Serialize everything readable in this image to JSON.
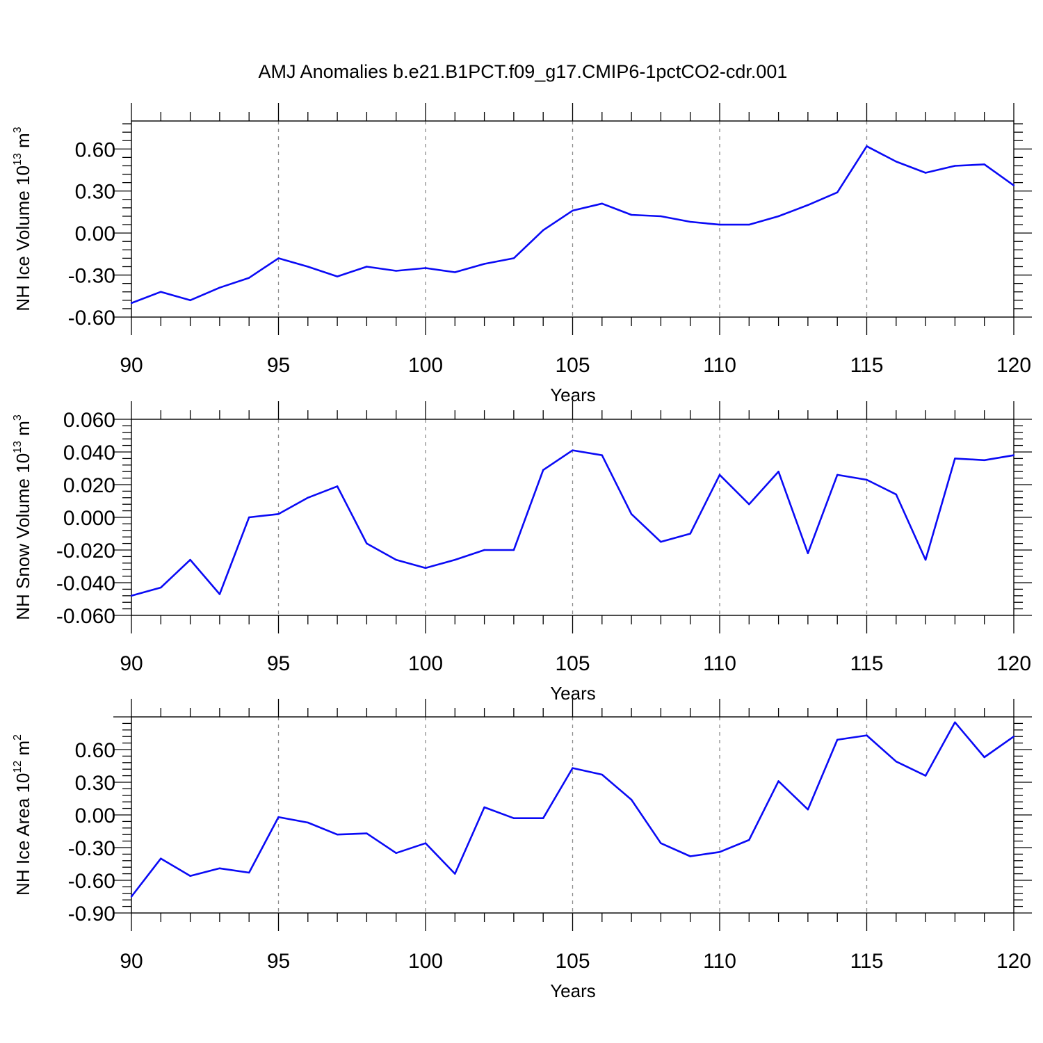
{
  "title": "AMJ Anomalies b.e21.B1PCT.f09_g17.CMIP6-1pctCO2-cdr.001",
  "colors": {
    "line": "#0a0af5",
    "axis": "#000000",
    "grid": "#8c8c8c"
  },
  "chart_data": [
    {
      "type": "line",
      "xlabel": "Years",
      "ylabel": "NH Ice Volume 10",
      "ylabel_sup": "13",
      "ylabel_unit": " m",
      "ylabel_unit_sup": "3",
      "xlim": [
        90,
        120
      ],
      "ylim": [
        -0.6,
        0.8
      ],
      "yticks": [
        -0.6,
        -0.3,
        0.0,
        0.3,
        0.6
      ],
      "ytick_labels": [
        "-0.60",
        "-0.30",
        "0.00",
        "0.30",
        "0.60"
      ],
      "xticks": [
        90,
        95,
        100,
        105,
        110,
        115,
        120
      ],
      "xtick_labels": [
        "90",
        "95",
        "100",
        "105",
        "110",
        "115",
        "120"
      ],
      "grid": "vertical dashed at major x ticks",
      "x": [
        90,
        91,
        92,
        93,
        94,
        95,
        96,
        97,
        98,
        99,
        100,
        101,
        102,
        103,
        104,
        105,
        106,
        107,
        108,
        109,
        110,
        111,
        112,
        113,
        114,
        115,
        116,
        117,
        118,
        119,
        120
      ],
      "y": [
        -0.5,
        -0.42,
        -0.48,
        -0.39,
        -0.32,
        -0.18,
        -0.24,
        -0.31,
        -0.24,
        -0.27,
        -0.25,
        -0.28,
        -0.22,
        -0.18,
        0.02,
        0.16,
        0.21,
        0.13,
        0.12,
        0.08,
        0.06,
        0.06,
        0.12,
        0.2,
        0.29,
        0.62,
        0.51,
        0.43,
        0.48,
        0.49,
        0.34
      ]
    },
    {
      "type": "line",
      "xlabel": "Years",
      "ylabel": "NH Snow Volume 10",
      "ylabel_sup": "13",
      "ylabel_unit": " m",
      "ylabel_unit_sup": "3",
      "xlim": [
        90,
        120
      ],
      "ylim": [
        -0.06,
        0.06
      ],
      "yticks": [
        -0.06,
        -0.04,
        -0.02,
        0.0,
        0.02,
        0.04,
        0.06
      ],
      "ytick_labels": [
        "-0.060",
        "-0.040",
        "-0.020",
        "0.000",
        "0.020",
        "0.040",
        "0.060"
      ],
      "xticks": [
        90,
        95,
        100,
        105,
        110,
        115,
        120
      ],
      "xtick_labels": [
        "90",
        "95",
        "100",
        "105",
        "110",
        "115",
        "120"
      ],
      "grid": "vertical dashed at major x ticks",
      "x": [
        90,
        91,
        92,
        93,
        94,
        95,
        96,
        97,
        98,
        99,
        100,
        101,
        102,
        103,
        104,
        105,
        106,
        107,
        108,
        109,
        110,
        111,
        112,
        113,
        114,
        115,
        116,
        117,
        118,
        119,
        120
      ],
      "y": [
        -0.048,
        -0.043,
        -0.026,
        -0.047,
        0.0,
        0.002,
        0.012,
        0.019,
        -0.016,
        -0.026,
        -0.031,
        -0.026,
        -0.02,
        -0.02,
        0.029,
        0.041,
        0.038,
        0.002,
        -0.015,
        -0.01,
        0.026,
        0.008,
        0.028,
        -0.022,
        0.026,
        0.023,
        0.014,
        -0.026,
        0.036,
        0.035,
        0.038
      ]
    },
    {
      "type": "line",
      "xlabel": "Years",
      "ylabel": "NH Ice Area 10",
      "ylabel_sup": "12",
      "ylabel_unit": " m",
      "ylabel_unit_sup": "2",
      "xlim": [
        90,
        120
      ],
      "ylim": [
        -0.9,
        0.9
      ],
      "yticks": [
        -0.9,
        -0.6,
        -0.3,
        0.0,
        0.3,
        0.6
      ],
      "ytick_labels": [
        "-0.90",
        "-0.60",
        "-0.30",
        "0.00",
        "0.30",
        "0.60"
      ],
      "xticks": [
        90,
        95,
        100,
        105,
        110,
        115,
        120
      ],
      "xtick_labels": [
        "90",
        "95",
        "100",
        "105",
        "110",
        "115",
        "120"
      ],
      "grid": "vertical dashed at major x ticks",
      "x": [
        90,
        91,
        92,
        93,
        94,
        95,
        96,
        97,
        98,
        99,
        100,
        101,
        102,
        103,
        104,
        105,
        106,
        107,
        108,
        109,
        110,
        111,
        112,
        113,
        114,
        115,
        116,
        117,
        118,
        119,
        120
      ],
      "y": [
        -0.75,
        -0.4,
        -0.56,
        -0.49,
        -0.53,
        -0.02,
        -0.07,
        -0.18,
        -0.17,
        -0.35,
        -0.26,
        -0.54,
        0.07,
        -0.03,
        -0.03,
        0.43,
        0.37,
        0.14,
        -0.26,
        -0.38,
        -0.34,
        -0.23,
        0.31,
        0.05,
        0.69,
        0.73,
        0.49,
        0.36,
        0.85,
        0.53,
        0.72
      ]
    }
  ]
}
